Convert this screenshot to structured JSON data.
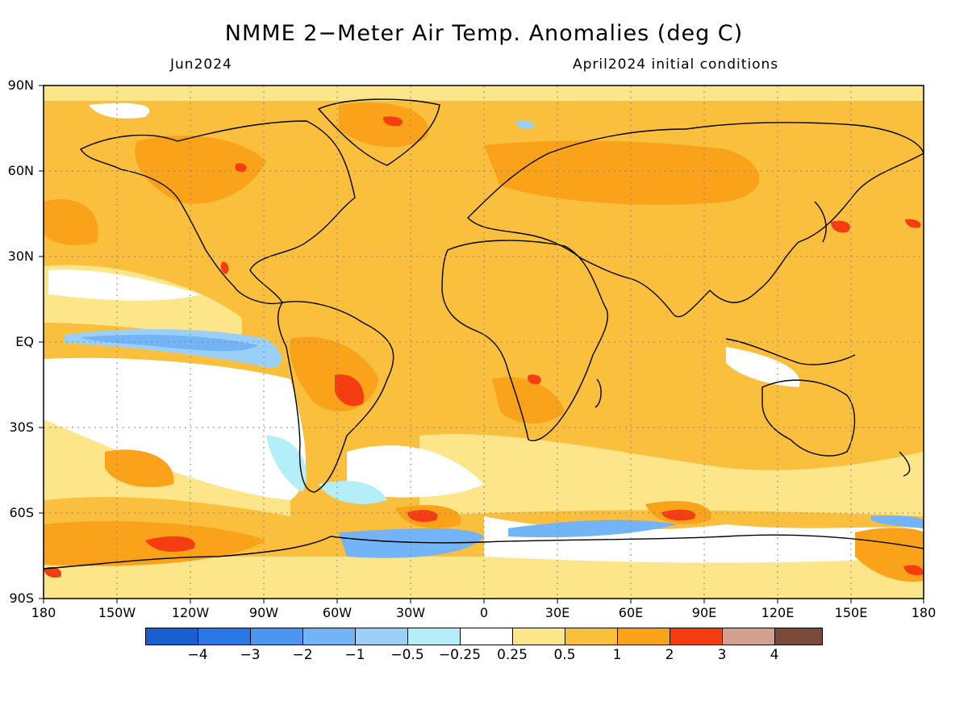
{
  "title": "NMME 2−Meter Air Temp. Anomalies (deg C)",
  "subtitle_left": "Jun2024",
  "subtitle_right": "April2024 initial conditions",
  "lat_labels": [
    "90N",
    "60N",
    "30N",
    "EQ",
    "30S",
    "60S",
    "90S"
  ],
  "lon_labels": [
    "180",
    "150W",
    "120W",
    "90W",
    "60W",
    "30W",
    "0",
    "30E",
    "60E",
    "90E",
    "120E",
    "150E",
    "180"
  ],
  "colorbar": {
    "colors": [
      "#1a5fd0",
      "#2a78e8",
      "#4a96f0",
      "#72b4f6",
      "#9ad0f8",
      "#b4eef8",
      "#ffffff",
      "#fde68a",
      "#fbbf3e",
      "#f9a21a",
      "#f63d12",
      "#d2a08e",
      "#7a4a3a"
    ],
    "labels": [
      "−4",
      "−3",
      "−2",
      "−1",
      "−0.5",
      "−0.25",
      "0.25",
      "0.5",
      "1",
      "2",
      "3",
      "4"
    ]
  },
  "map_colors": {
    "ocean_base": "#fbbf3e",
    "neutral": "#ffffff",
    "light_warm": "#fde68a",
    "warm": "#f9a21a",
    "hot": "#f63d12",
    "light_cool": "#b4eef8",
    "cool": "#72b4f6",
    "coast": "#000000"
  }
}
